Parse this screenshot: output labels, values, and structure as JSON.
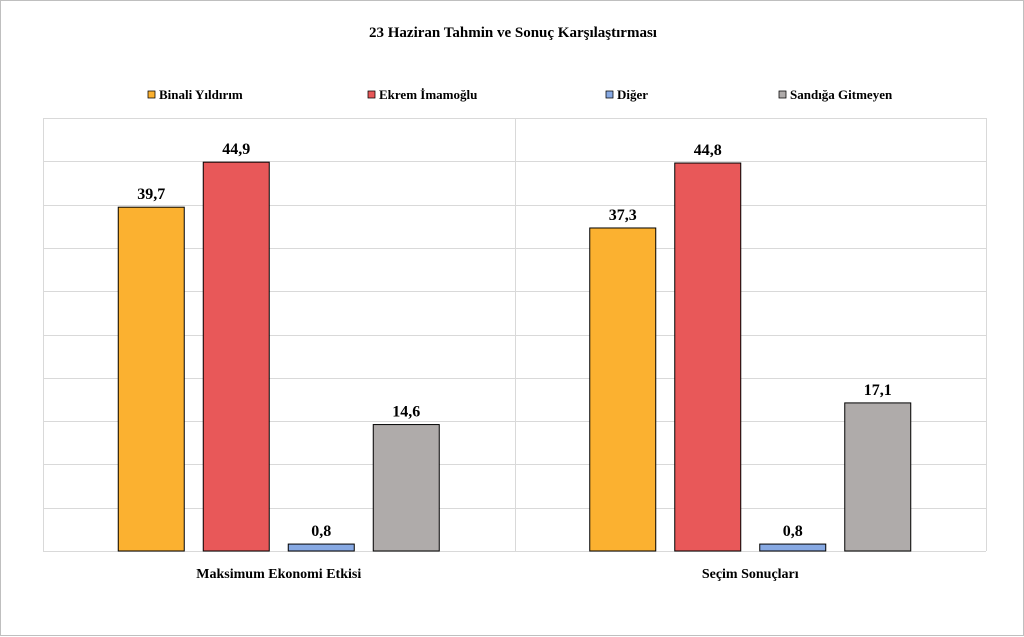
{
  "chart_data": {
    "type": "bar",
    "title": "23 Haziran Tahmin ve Sonuç Karşılaştırması",
    "categories": [
      "Maksimum Ekonomi Etkisi",
      "Seçim Sonuçları"
    ],
    "series": [
      {
        "name": "Binali Yıldırım",
        "color": "#fbb130",
        "values": [
          39.7,
          37.3
        ],
        "labels": [
          "39,7",
          "37,3"
        ]
      },
      {
        "name": "Ekrem İmamoğlu",
        "color": "#e85859",
        "values": [
          44.9,
          44.8
        ],
        "labels": [
          "44,9",
          "44,8"
        ]
      },
      {
        "name": "Diğer",
        "color": "#87a9e3",
        "values": [
          0.8,
          0.8
        ],
        "labels": [
          "0,8",
          "0,8"
        ]
      },
      {
        "name": "Sandığa Gitmeyen",
        "color": "#afabaa",
        "values": [
          14.6,
          17.1
        ],
        "labels": [
          "14,6",
          "17,1"
        ]
      }
    ],
    "ylim": [
      0,
      50
    ],
    "grid": true,
    "legend_position": "top",
    "xlabel": "",
    "ylabel": ""
  }
}
